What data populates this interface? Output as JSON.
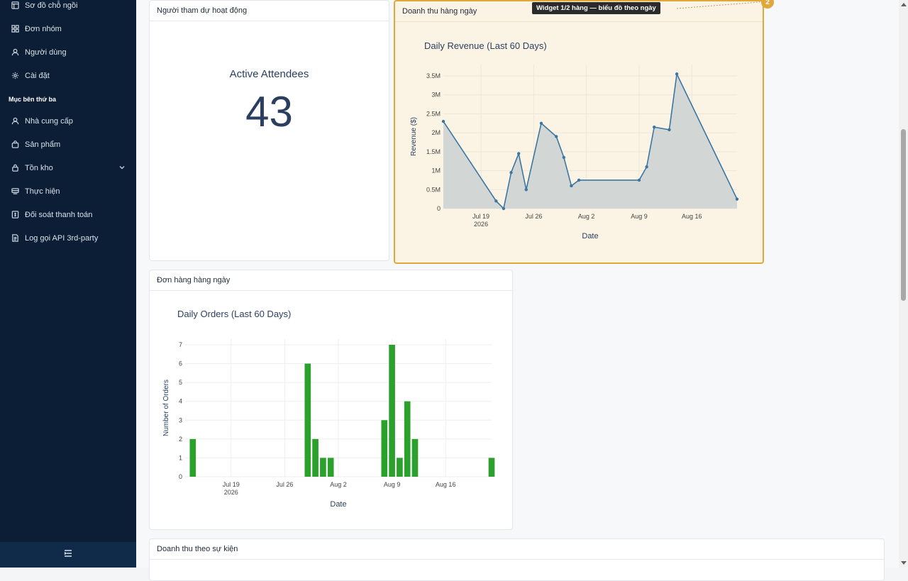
{
  "sidebar": {
    "items_top": [
      {
        "label": "Sơ đồ chỗ ngồi",
        "icon": "layout-icon"
      },
      {
        "label": "Đơn nhóm",
        "icon": "grid-icon"
      },
      {
        "label": "Người dùng",
        "icon": "user-icon"
      },
      {
        "label": "Cài đặt",
        "icon": "gear-icon"
      }
    ],
    "section_label": "Mục bên thứ ba",
    "items_third_party": [
      {
        "label": "Nhà cung cấp",
        "icon": "user-icon"
      },
      {
        "label": "Sản phẩm",
        "icon": "bag-icon"
      },
      {
        "label": "Tồn kho",
        "icon": "lock-icon"
      },
      {
        "label": "Thực hiện",
        "icon": "truck-icon"
      },
      {
        "label": "Đối soát thanh toán",
        "icon": "receipt-icon"
      },
      {
        "label": "Log gọi API 3rd-party",
        "icon": "file-icon"
      }
    ]
  },
  "cards": {
    "attendees": {
      "header": "Người tham dự hoạt động",
      "metric_title": "Active Attendees",
      "metric_value": "43"
    },
    "revenue": {
      "header": "Doanh thu hàng ngày",
      "tooltip": "Widget 1/2 hàng — biểu đồ theo ngày",
      "badge": "2"
    },
    "orders": {
      "header": "Đơn hàng hàng ngày"
    },
    "event_revenue": {
      "header": "Doanh thu theo sự kiện"
    }
  },
  "chart_data": [
    {
      "type": "area",
      "title": "Daily Revenue (Last 60 Days)",
      "xlabel": "Date",
      "ylabel": "Revenue ($)",
      "x_ticks": [
        {
          "date": "2026-07-19",
          "label": "Jul 19",
          "sublabel": "2026"
        },
        {
          "date": "2026-07-26",
          "label": "Jul 26"
        },
        {
          "date": "2026-08-02",
          "label": "Aug 2"
        },
        {
          "date": "2026-08-09",
          "label": "Aug 9"
        },
        {
          "date": "2026-08-16",
          "label": "Aug 16"
        }
      ],
      "y_ticks": [
        {
          "value": 0,
          "label": "0"
        },
        {
          "value": 500000,
          "label": "0.5M"
        },
        {
          "value": 1000000,
          "label": "1M"
        },
        {
          "value": 1500000,
          "label": "1.5M"
        },
        {
          "value": 2000000,
          "label": "2M"
        },
        {
          "value": 2500000,
          "label": "2.5M"
        },
        {
          "value": 3000000,
          "label": "3M"
        },
        {
          "value": 3500000,
          "label": "3.5M"
        }
      ],
      "ylim": [
        0,
        3800000
      ],
      "xlim": [
        "2026-07-14",
        "2026-08-22"
      ],
      "color": "#3b77a2",
      "fill": "#d0d5d4",
      "series": [
        {
          "x": [
            "2026-07-14",
            "2026-07-21",
            "2026-07-22",
            "2026-07-23",
            "2026-07-24",
            "2026-07-25",
            "2026-07-27",
            "2026-07-29",
            "2026-07-30",
            "2026-07-31",
            "2026-08-01",
            "2026-08-09",
            "2026-08-10",
            "2026-08-11",
            "2026-08-13",
            "2026-08-14",
            "2026-08-22"
          ],
          "y": [
            2300000,
            200000,
            0,
            950000,
            1450000,
            500000,
            2250000,
            1900000,
            1350000,
            600000,
            750000,
            750000,
            1100000,
            2150000,
            2080000,
            3550000,
            250000
          ]
        }
      ]
    },
    {
      "type": "bar",
      "title": "Daily Orders (Last 60 Days)",
      "xlabel": "Date",
      "ylabel": "Number of Orders",
      "x_ticks": [
        {
          "date": "2026-07-19",
          "label": "Jul 19",
          "sublabel": "2026"
        },
        {
          "date": "2026-07-26",
          "label": "Jul 26"
        },
        {
          "date": "2026-08-02",
          "label": "Aug 2"
        },
        {
          "date": "2026-08-09",
          "label": "Aug 9"
        },
        {
          "date": "2026-08-16",
          "label": "Aug 16"
        }
      ],
      "y_ticks": [
        0,
        1,
        2,
        3,
        4,
        5,
        6,
        7
      ],
      "ylim": [
        0,
        7.3
      ],
      "xlim": [
        "2026-07-13",
        "2026-08-22"
      ],
      "color": "#2ca02c",
      "series": [
        {
          "x": [
            "2026-07-14",
            "2026-07-29",
            "2026-07-30",
            "2026-07-31",
            "2026-08-01",
            "2026-08-08",
            "2026-08-09",
            "2026-08-10",
            "2026-08-11",
            "2026-08-12",
            "2026-08-22"
          ],
          "y": [
            2,
            6,
            2,
            1,
            1,
            3,
            7,
            1,
            4,
            2,
            1
          ]
        }
      ]
    }
  ]
}
